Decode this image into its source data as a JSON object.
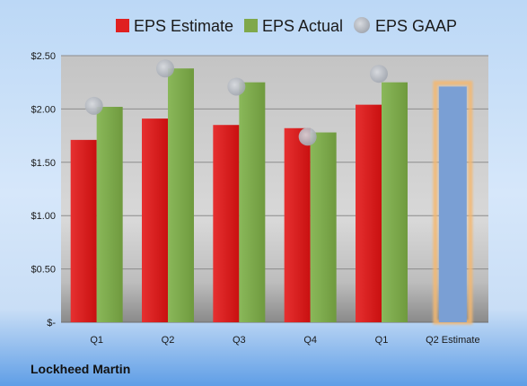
{
  "chart_data": {
    "type": "bar",
    "categories": [
      "Q1",
      "Q2",
      "Q3",
      "Q4",
      "Q1",
      "Q2 Estimate"
    ],
    "series": [
      {
        "name": "EPS Estimate",
        "color": "#e02020",
        "values": [
          1.71,
          1.91,
          1.85,
          1.82,
          2.04,
          null
        ]
      },
      {
        "name": "EPS Actual",
        "color": "#7fa84a",
        "values": [
          2.02,
          2.38,
          2.25,
          1.78,
          2.25,
          null
        ]
      },
      {
        "name": "EPS GAAP",
        "color": "#b8bcc4",
        "marker": "circle",
        "values": [
          2.03,
          2.38,
          2.21,
          1.74,
          2.33,
          null
        ]
      }
    ],
    "projection": {
      "category": "Q2 Estimate",
      "value": 2.21,
      "color": "#7a9fd4",
      "glow": "#f4b870"
    },
    "yticks": [
      {
        "value": 0,
        "label": "$-"
      },
      {
        "value": 0.5,
        "label": "$0.50"
      },
      {
        "value": 1.0,
        "label": "$1.00"
      },
      {
        "value": 1.5,
        "label": "$1.50"
      },
      {
        "value": 2.0,
        "label": "$2.00"
      },
      {
        "value": 2.5,
        "label": "$2.50"
      }
    ],
    "ylim": [
      0,
      2.5
    ],
    "grid": true,
    "legend_position": "top",
    "title": "",
    "xlabel": "",
    "ylabel": ""
  },
  "company": "Lockheed Martin"
}
